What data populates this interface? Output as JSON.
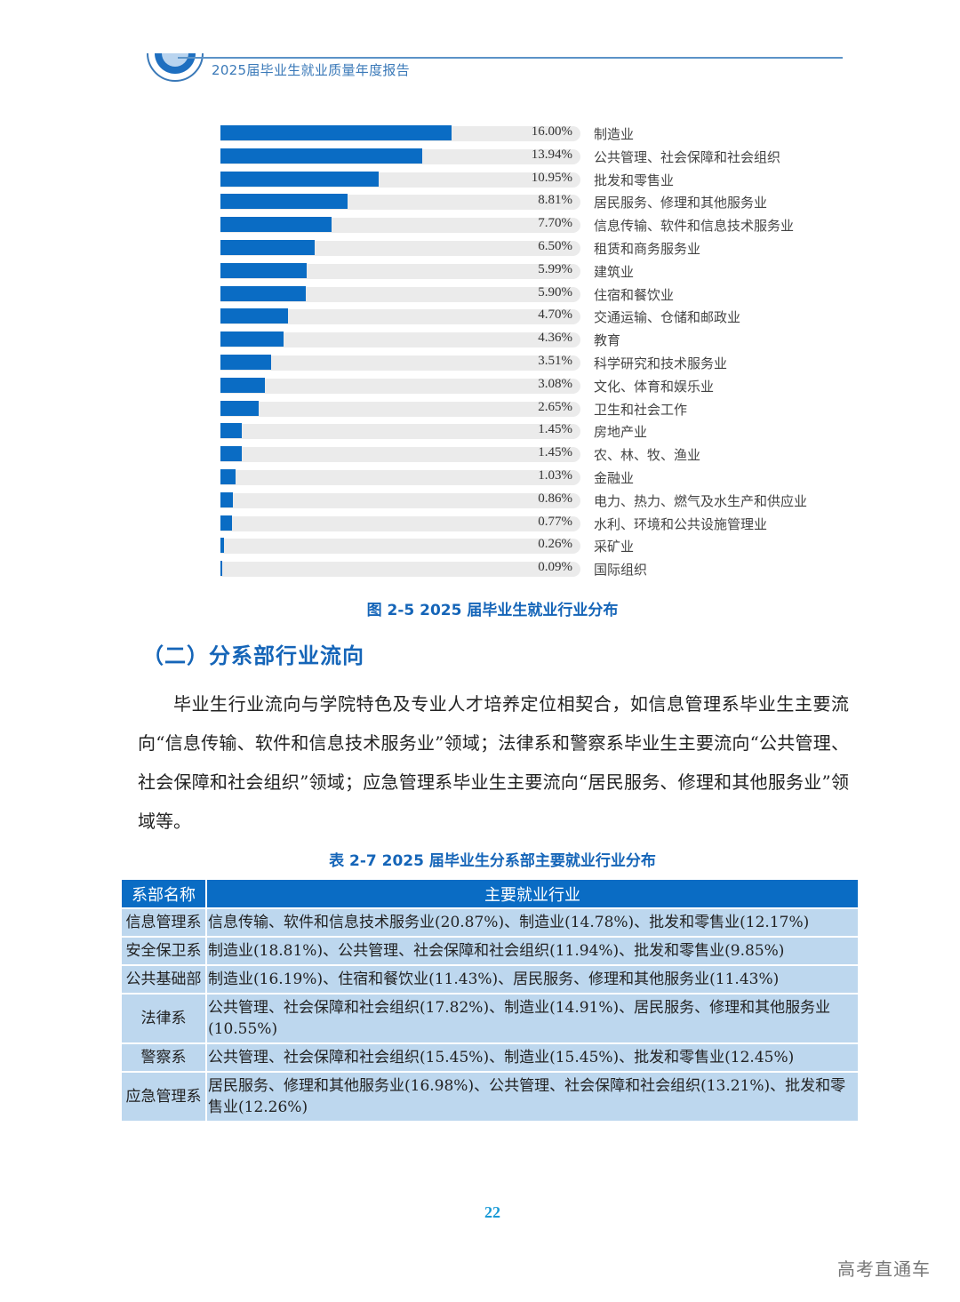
{
  "header": {
    "title": "2025届毕业生就业质量年度报告",
    "logo_icon": "half-circle-logo-icon",
    "accent_color": "#3a79b8"
  },
  "chart_data": {
    "type": "bar",
    "orientation": "horizontal",
    "title": "图 2-5  2025 届毕业生就业行业分布",
    "xlabel": "",
    "ylabel": "",
    "value_unit": "%",
    "xlim": [
      0,
      25
    ],
    "grid": false,
    "legend": null,
    "bar_color": "#0a6cc4",
    "track_color": "#ebebeb",
    "categories": [
      "制造业",
      "公共管理、社会保障和社会组织",
      "批发和零售业",
      "居民服务、修理和其他服务业",
      "信息传输、软件和信息技术服务业",
      "租赁和商务服务业",
      "建筑业",
      "住宿和餐饮业",
      "交通运输、仓储和邮政业",
      "教育",
      "科学研究和技术服务业",
      "文化、体育和娱乐业",
      "卫生和社会工作",
      "房地产业",
      "农、林、牧、渔业",
      "金融业",
      "电力、热力、燃气及水生产和供应业",
      "水利、环境和公共设施管理业",
      "采矿业",
      "国际组织"
    ],
    "values": [
      16.0,
      13.94,
      10.95,
      8.81,
      7.7,
      6.5,
      5.99,
      5.9,
      4.7,
      4.36,
      3.51,
      3.08,
      2.65,
      1.45,
      1.45,
      1.03,
      0.86,
      0.77,
      0.26,
      0.09
    ],
    "labels": [
      "16.00%",
      "13.94%",
      "10.95%",
      "8.81%",
      "7.70%",
      "6.50%",
      "5.99%",
      "5.90%",
      "4.70%",
      "4.36%",
      "3.51%",
      "3.08%",
      "2.65%",
      "1.45%",
      "1.45%",
      "1.03%",
      "0.86%",
      "0.77%",
      "0.26%",
      "0.09%"
    ]
  },
  "figure": {
    "caption": "图 2-5  2025 届毕业生就业行业分布"
  },
  "section": {
    "title": "（二）分系部行业流向",
    "paragraph": "毕业生行业流向与学院特色及专业人才培养定位相契合，如信息管理系毕业生主要流向“信息传输、软件和信息技术服务业”领域；法律系和警察系毕业生主要流向“公共管理、社会保障和社会组织”领域；应急管理系毕业生主要流向“居民服务、修理和其他服务业”领域等。"
  },
  "table": {
    "caption": "表 2-7  2025 届毕业生分系部主要就业行业分布",
    "header_color": "#0a6cc4",
    "row_color": "#bdd7ee",
    "columns": [
      "系部名称",
      "主要就业行业"
    ],
    "rows": [
      {
        "dept": "信息管理系",
        "industries": "信息传输、软件和信息技术服务业(20.87%)、制造业(14.78%)、批发和零售业(12.17%)"
      },
      {
        "dept": "安全保卫系",
        "industries": "制造业(18.81%)、公共管理、社会保障和社会组织(11.94%)、批发和零售业(9.85%)"
      },
      {
        "dept": "公共基础部",
        "industries": "制造业(16.19%)、住宿和餐饮业(11.43%)、居民服务、修理和其他服务业(11.43%)"
      },
      {
        "dept": "法律系",
        "industries": "公共管理、社会保障和社会组织(17.82%)、制造业(14.91%)、居民服务、修理和其他服务业(10.55%)"
      },
      {
        "dept": "警察系",
        "industries": "公共管理、社会保障和社会组织(15.45%)、制造业(15.45%)、批发和零售业(12.45%)"
      },
      {
        "dept": "应急管理系",
        "industries": "居民服务、修理和其他服务业(16.98%)、公共管理、社会保障和社会组织(13.21%)、批发和零售业(12.26%)"
      }
    ]
  },
  "footer": {
    "page_number": "22",
    "watermark": "高考直通车"
  }
}
